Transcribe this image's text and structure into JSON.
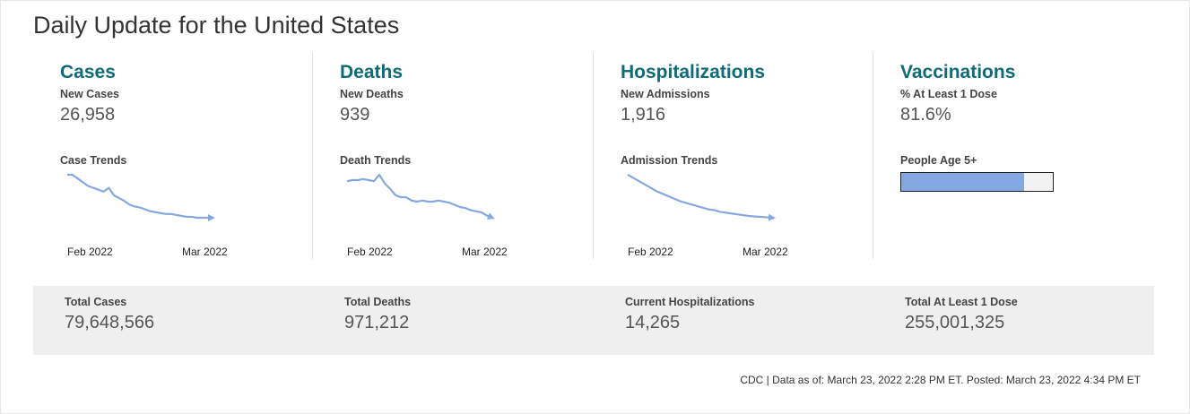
{
  "page_title": "Daily Update for the United States",
  "colors": {
    "heading": "#0e6b78",
    "trend_line": "#86a8e0",
    "summary_bg": "#efefef"
  },
  "panels": [
    {
      "heading": "Cases",
      "sublabel": "New Cases",
      "value": "26,958",
      "trend_label": "Case Trends",
      "ticks": [
        "Feb 2022",
        "Mar 2022"
      ]
    },
    {
      "heading": "Deaths",
      "sublabel": "New Deaths",
      "value": "939",
      "trend_label": "Death Trends",
      "ticks": [
        "Feb 2022",
        "Mar 2022"
      ]
    },
    {
      "heading": "Hospitalizations",
      "sublabel": "New Admissions",
      "value": "1,916",
      "trend_label": "Admission Trends",
      "ticks": [
        "Feb 2022",
        "Mar 2022"
      ]
    },
    {
      "heading": "Vaccinations",
      "sublabel": "% At Least 1 Dose",
      "value": "81.6%",
      "bar_label": "People Age 5+",
      "bar_fraction": 0.81
    }
  ],
  "chart_data": [
    {
      "type": "line",
      "values": [
        100,
        100,
        96,
        92,
        88,
        86,
        84,
        82,
        86,
        78,
        75,
        72,
        68,
        66,
        65,
        63,
        61,
        60,
        59,
        58,
        58,
        57,
        56,
        55,
        55,
        54,
        54,
        54,
        54
      ]
    },
    {
      "type": "line",
      "values": [
        50,
        51,
        51,
        52,
        51,
        50,
        56,
        48,
        43,
        37,
        35,
        35,
        32,
        31,
        32,
        31,
        31,
        32,
        31,
        30,
        28,
        26,
        25,
        23,
        22,
        21,
        18,
        16
      ]
    },
    {
      "type": "line",
      "values": [
        100,
        96,
        92,
        88,
        84,
        80,
        77,
        74,
        71,
        68,
        66,
        64,
        62,
        60,
        58,
        57,
        55,
        54,
        53,
        52,
        51,
        50,
        49.5,
        49,
        48.5,
        48
      ]
    }
  ],
  "summary": [
    {
      "label": "Total Cases",
      "value": "79,648,566"
    },
    {
      "label": "Total Deaths",
      "value": "971,212"
    },
    {
      "label": "Current Hospitalizations",
      "value": "14,265"
    },
    {
      "label": "Total At Least 1 Dose",
      "value": "255,001,325"
    }
  ],
  "footnote": "CDC | Data as of: March 23, 2022 2:28 PM ET. Posted: March 23, 2022 4:34 PM ET"
}
